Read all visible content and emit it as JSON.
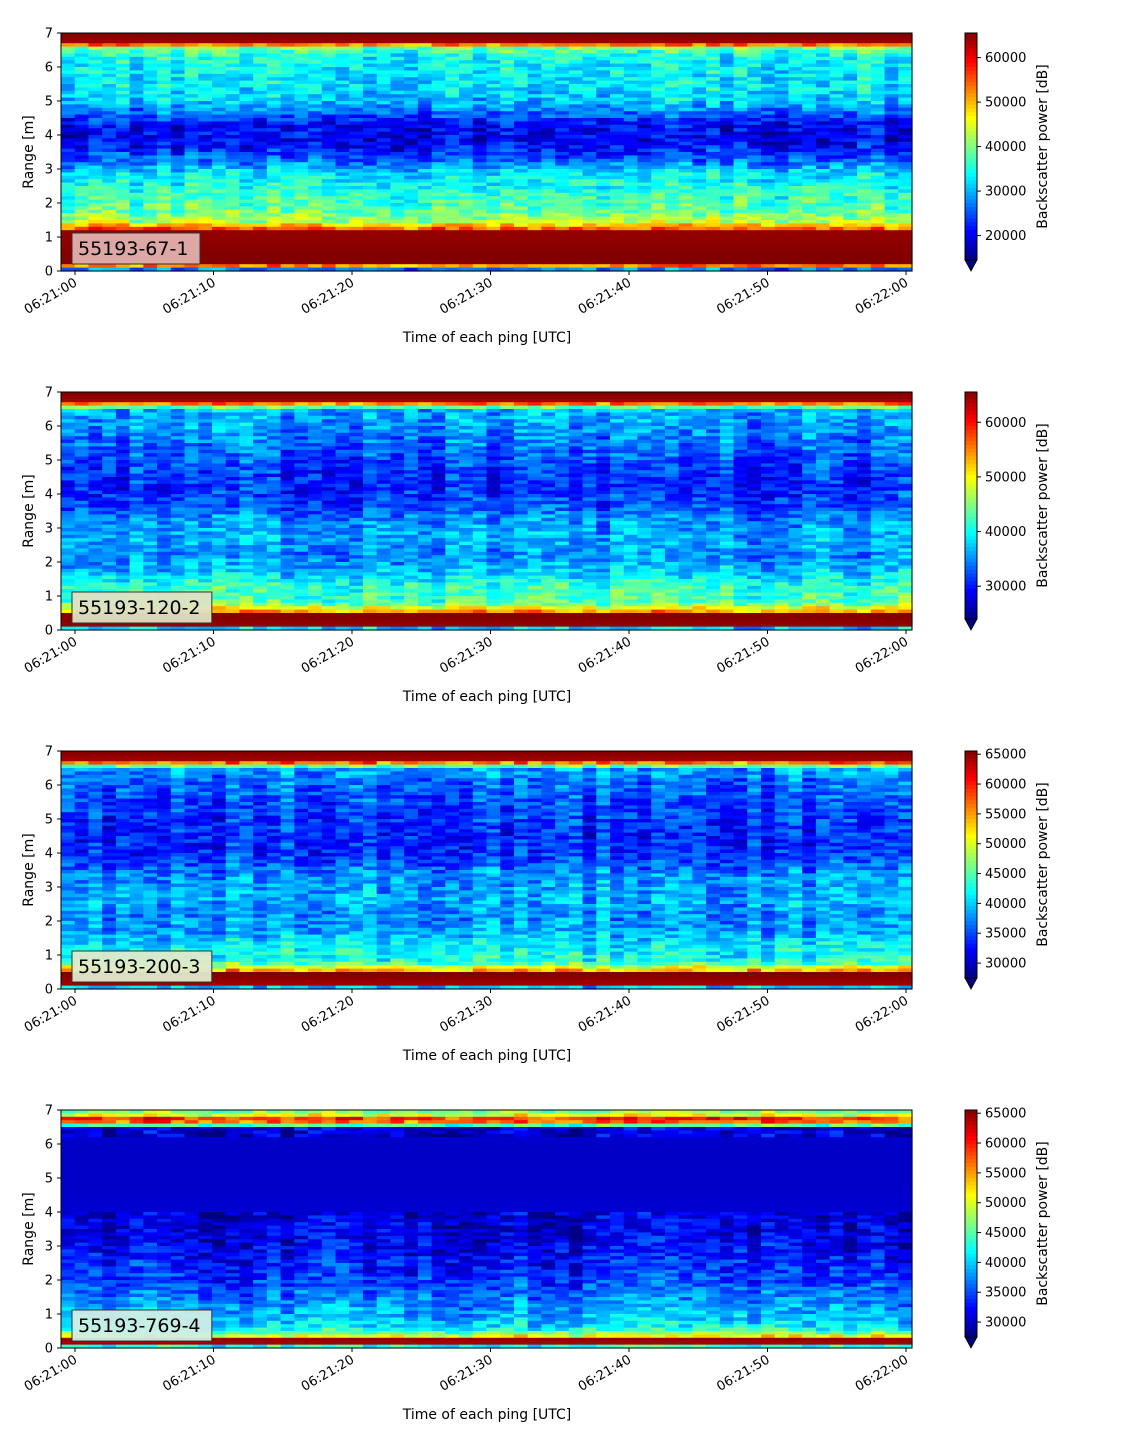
{
  "chart_data": [
    {
      "type": "heatmap",
      "panel_label": "55193-67-1",
      "xlabel": "Time of each ping [UTC]",
      "ylabel": "Range [m]",
      "colorbar_label": "Backscatter power [dB]",
      "xticks": [
        "06:21:00",
        "06:21:10",
        "06:21:20",
        "06:21:30",
        "06:21:40",
        "06:21:50",
        "06:22:00"
      ],
      "x_range_seconds": [
        0,
        61
      ],
      "yticks": [
        0,
        1,
        2,
        3,
        4,
        5,
        6,
        7
      ],
      "ylim": [
        0,
        7
      ],
      "colorbar_ticks": [
        20000,
        30000,
        40000,
        50000,
        60000
      ],
      "vmin": 14500,
      "vmax": 65535,
      "colormap": "jet",
      "range_profile": [
        [
          0.0,
          0.0
        ],
        [
          0.2,
          0.99
        ],
        [
          0.3,
          1.0
        ],
        [
          1.15,
          0.98
        ],
        [
          1.25,
          0.78
        ],
        [
          1.45,
          0.55
        ],
        [
          1.7,
          0.48
        ],
        [
          2.0,
          0.44
        ],
        [
          2.4,
          0.4
        ],
        [
          2.9,
          0.34
        ],
        [
          3.3,
          0.2
        ],
        [
          3.8,
          0.1
        ],
        [
          4.3,
          0.12
        ],
        [
          4.7,
          0.24
        ],
        [
          5.0,
          0.32
        ],
        [
          5.5,
          0.35
        ],
        [
          6.0,
          0.37
        ],
        [
          6.4,
          0.4
        ],
        [
          6.6,
          0.52
        ],
        [
          6.7,
          0.97
        ],
        [
          7.0,
          1.0
        ]
      ],
      "label_box_color": "#e2b0ae"
    },
    {
      "type": "heatmap",
      "panel_label": "55193-120-2",
      "xlabel": "Time of each ping [UTC]",
      "ylabel": "Range [m]",
      "colorbar_label": "Backscatter power [dB]",
      "xticks": [
        "06:21:00",
        "06:21:10",
        "06:21:20",
        "06:21:30",
        "06:21:40",
        "06:21:50",
        "06:22:00"
      ],
      "x_range_seconds": [
        0,
        61
      ],
      "yticks": [
        0,
        1,
        2,
        3,
        4,
        5,
        6,
        7
      ],
      "ylim": [
        0,
        7
      ],
      "colorbar_ticks": [
        30000,
        40000,
        50000,
        60000
      ],
      "vmin": 24000,
      "vmax": 65535,
      "colormap": "jet",
      "range_profile": [
        [
          0.0,
          0.0
        ],
        [
          0.15,
          0.98
        ],
        [
          0.45,
          1.0
        ],
        [
          0.55,
          0.72
        ],
        [
          0.8,
          0.45
        ],
        [
          1.3,
          0.42
        ],
        [
          1.7,
          0.32
        ],
        [
          2.2,
          0.25
        ],
        [
          2.6,
          0.3
        ],
        [
          3.0,
          0.28
        ],
        [
          3.3,
          0.26
        ],
        [
          3.6,
          0.2
        ],
        [
          4.2,
          0.16
        ],
        [
          4.8,
          0.18
        ],
        [
          5.4,
          0.23
        ],
        [
          6.0,
          0.27
        ],
        [
          6.45,
          0.3
        ],
        [
          6.6,
          0.55
        ],
        [
          6.7,
          0.96
        ],
        [
          7.0,
          1.0
        ]
      ],
      "label_box_color": "#dfe2c4"
    },
    {
      "type": "heatmap",
      "panel_label": "55193-200-3",
      "xlabel": "Time of each ping [UTC]",
      "ylabel": "Range [m]",
      "colorbar_label": "Backscatter power [dB]",
      "xticks": [
        "06:21:00",
        "06:21:10",
        "06:21:20",
        "06:21:30",
        "06:21:40",
        "06:21:50",
        "06:22:00"
      ],
      "x_range_seconds": [
        0,
        61
      ],
      "yticks": [
        0,
        1,
        2,
        3,
        4,
        5,
        6,
        7
      ],
      "ylim": [
        0,
        7
      ],
      "colorbar_ticks": [
        30000,
        35000,
        40000,
        45000,
        50000,
        55000,
        60000,
        65000
      ],
      "vmin": 27500,
      "vmax": 65535,
      "colormap": "jet",
      "range_profile": [
        [
          0.0,
          0.0
        ],
        [
          0.15,
          0.97
        ],
        [
          0.45,
          1.0
        ],
        [
          0.55,
          0.7
        ],
        [
          0.8,
          0.4
        ],
        [
          1.3,
          0.36
        ],
        [
          1.7,
          0.28
        ],
        [
          2.2,
          0.26
        ],
        [
          2.6,
          0.3
        ],
        [
          3.0,
          0.28
        ],
        [
          3.4,
          0.26
        ],
        [
          3.8,
          0.18
        ],
        [
          4.4,
          0.15
        ],
        [
          5.0,
          0.17
        ],
        [
          5.6,
          0.2
        ],
        [
          6.2,
          0.24
        ],
        [
          6.45,
          0.28
        ],
        [
          6.6,
          0.55
        ],
        [
          6.7,
          0.96
        ],
        [
          7.0,
          1.0
        ]
      ],
      "label_box_color": "#dfeacb"
    },
    {
      "type": "heatmap",
      "panel_label": "55193-769-4",
      "xlabel": "Time of each ping [UTC]",
      "ylabel": "Range [m]",
      "colorbar_label": "Backscatter power [dB]",
      "xticks": [
        "06:21:00",
        "06:21:10",
        "06:21:20",
        "06:21:30",
        "06:21:40",
        "06:21:50",
        "06:22:00"
      ],
      "x_range_seconds": [
        0,
        61
      ],
      "yticks": [
        0,
        1,
        2,
        3,
        4,
        5,
        6,
        7
      ],
      "ylim": [
        0,
        7
      ],
      "colorbar_ticks": [
        30000,
        35000,
        40000,
        45000,
        50000,
        55000,
        60000,
        65000
      ],
      "vmin": 27500,
      "vmax": 65535,
      "colormap": "jet",
      "range_profile": [
        [
          0.0,
          0.0
        ],
        [
          0.12,
          0.96
        ],
        [
          0.3,
          0.98
        ],
        [
          0.36,
          0.55
        ],
        [
          0.6,
          0.36
        ],
        [
          1.0,
          0.3
        ],
        [
          1.5,
          0.24
        ],
        [
          2.0,
          0.18
        ],
        [
          2.6,
          0.14
        ],
        [
          3.2,
          0.1
        ],
        [
          4.0,
          0.08
        ],
        [
          5.0,
          0.07
        ],
        [
          6.0,
          0.07
        ],
        [
          6.45,
          0.09
        ],
        [
          6.55,
          0.45
        ],
        [
          6.7,
          0.93
        ],
        [
          6.85,
          0.6
        ],
        [
          7.0,
          0.45
        ]
      ],
      "label_box_color": "#cfeee6"
    }
  ]
}
